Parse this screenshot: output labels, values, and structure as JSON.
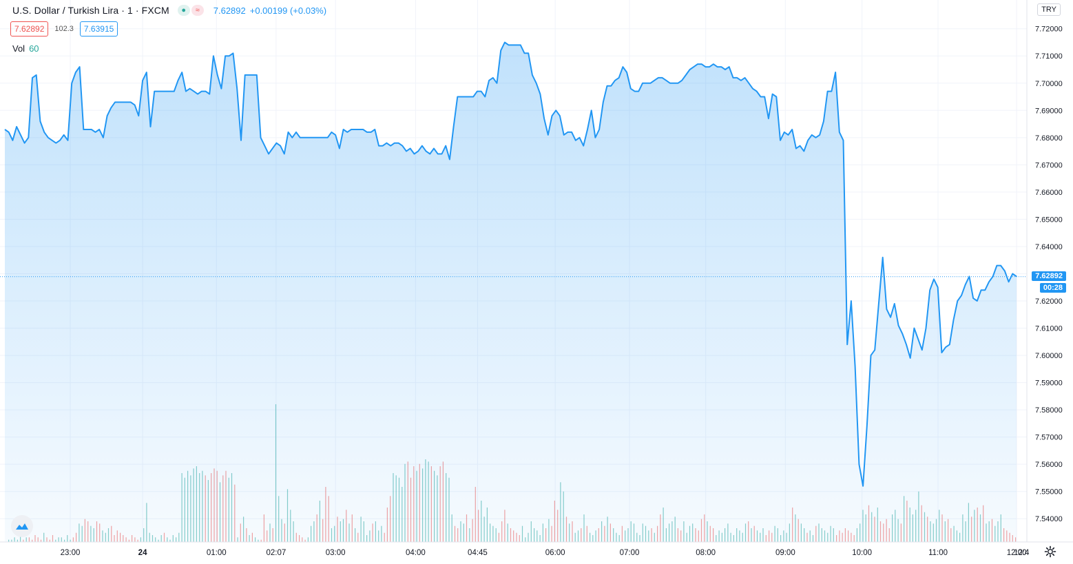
{
  "header": {
    "symbol": "U.S. Dollar / Turkish Lira · 1 · FXCM",
    "last": "7.62892",
    "change": "+0.00199 (+0.03%)",
    "bid": "7.62892",
    "spread": "102.3",
    "ask": "7.63915",
    "vol_label": "Vol",
    "vol_value": "60",
    "currency": "TRY",
    "dot_icon": "●",
    "wave_icon": "≈"
  },
  "price_label": {
    "value": "7.62892",
    "countdown": "00:28"
  },
  "colors": {
    "line": "#2196f3",
    "fill": "#cfe6fb",
    "up": "#26a69a",
    "down": "#ef5350",
    "grid": "#f0f3fa",
    "axis_text": "#131722"
  },
  "chart_data": {
    "type": "area",
    "title": "U.S. Dollar / Turkish Lira · 1 · FXCM",
    "xlabel": "",
    "ylabel": "",
    "ylim": [
      7.535,
      7.726
    ],
    "y_ticks": [
      "7.72000",
      "7.71000",
      "7.70000",
      "7.69000",
      "7.68000",
      "7.67000",
      "7.66000",
      "7.65000",
      "7.64000",
      "7.63000",
      "7.62000",
      "7.61000",
      "7.60000",
      "7.59000",
      "7.58000",
      "7.57000",
      "7.56000",
      "7.55000",
      "7.54000"
    ],
    "x_ticks": [
      "23:00",
      "24",
      "01:00",
      "02:07",
      "03:00",
      "04:00",
      "04:45",
      "06:00",
      "07:00",
      "08:00",
      "09:00",
      "10:00",
      "11:00",
      "12:00",
      "12:4"
    ],
    "x_tick_pos": [
      0.0,
      0.0756,
      0.1527,
      0.215,
      0.2771,
      0.3607,
      0.4255,
      0.5066,
      0.5842,
      0.6638,
      0.747,
      0.8271,
      0.9065,
      0.9886,
      1.0
    ],
    "grid": true,
    "series": [
      {
        "values": [
          7.683,
          7.682,
          7.679,
          7.684,
          7.681,
          7.678,
          7.68,
          7.702,
          7.703,
          7.686,
          7.682,
          7.68,
          7.679,
          7.678,
          7.679,
          7.681,
          7.679,
          7.7,
          7.704,
          7.706,
          7.683,
          7.683,
          7.683,
          7.682,
          7.683,
          7.68,
          7.688,
          7.691,
          7.693,
          7.693,
          7.693,
          7.693,
          7.693,
          7.692,
          7.688,
          7.701,
          7.704,
          7.684,
          7.697,
          7.697,
          7.697,
          7.697,
          7.697,
          7.697,
          7.701,
          7.704,
          7.697,
          7.698,
          7.697,
          7.696,
          7.697,
          7.697,
          7.696,
          7.71,
          7.703,
          7.698,
          7.71,
          7.71,
          7.711,
          7.698,
          7.679,
          7.703,
          7.703,
          7.703,
          7.703,
          7.68,
          7.677,
          7.674,
          7.676,
          7.678,
          7.677,
          7.674,
          7.682,
          7.68,
          7.682,
          7.68,
          7.68,
          7.68,
          7.68,
          7.68,
          7.68,
          7.68,
          7.68,
          7.682,
          7.681,
          7.676,
          7.683,
          7.682,
          7.683,
          7.683,
          7.683,
          7.683,
          7.682,
          7.682,
          7.683,
          7.677,
          7.677,
          7.678,
          7.677,
          7.678,
          7.678,
          7.677,
          7.675,
          7.676,
          7.674,
          7.675,
          7.677,
          7.675,
          7.674,
          7.676,
          7.674,
          7.674,
          7.677,
          7.672,
          7.684,
          7.695,
          7.695,
          7.695,
          7.695,
          7.695,
          7.697,
          7.697,
          7.695,
          7.701,
          7.702,
          7.7,
          7.712,
          7.715,
          7.714,
          7.714,
          7.714,
          7.714,
          7.711,
          7.711,
          7.703,
          7.7,
          7.696,
          7.687,
          7.681,
          7.688,
          7.69,
          7.688,
          7.681,
          7.682,
          7.682,
          7.679,
          7.68,
          7.677,
          7.683,
          7.69,
          7.68,
          7.683,
          7.693,
          7.699,
          7.699,
          7.701,
          7.702,
          7.706,
          7.704,
          7.698,
          7.697,
          7.697,
          7.7,
          7.7,
          7.7,
          7.701,
          7.702,
          7.702,
          7.701,
          7.7,
          7.7,
          7.7,
          7.701,
          7.703,
          7.705,
          7.706,
          7.707,
          7.707,
          7.706,
          7.706,
          7.707,
          7.706,
          7.706,
          7.705,
          7.706,
          7.702,
          7.702,
          7.701,
          7.702,
          7.7,
          7.698,
          7.697,
          7.695,
          7.695,
          7.687,
          7.696,
          7.695,
          7.679,
          7.682,
          7.681,
          7.683,
          7.676,
          7.677,
          7.675,
          7.679,
          7.681,
          7.68,
          7.681,
          7.686,
          7.697,
          7.697,
          7.704,
          7.682,
          7.679,
          7.604,
          7.62,
          7.596,
          7.56,
          7.552,
          7.574,
          7.6,
          7.602,
          7.619,
          7.636,
          7.617,
          7.614,
          7.619,
          7.611,
          7.608,
          7.604,
          7.599,
          7.61,
          7.606,
          7.602,
          7.61,
          7.624,
          7.628,
          7.625,
          7.601,
          7.603,
          7.604,
          7.613,
          7.62,
          7.622,
          7.626,
          7.629,
          7.621,
          7.62,
          7.624,
          7.624,
          7.627,
          7.629,
          7.633,
          7.633,
          7.631,
          7.627,
          7.63,
          7.629
        ],
        "fill_baseline": "bottom"
      }
    ],
    "volume": {
      "values": [
        1,
        1,
        2,
        1,
        3,
        1,
        2,
        2,
        1,
        3,
        2,
        1,
        4,
        2,
        1,
        3,
        1,
        2,
        2,
        1,
        3,
        1,
        2,
        4,
        8,
        7,
        10,
        9,
        7,
        6,
        9,
        8,
        5,
        4,
        6,
        7,
        3,
        5,
        4,
        3,
        2,
        1,
        3,
        2,
        1,
        2,
        6,
        17,
        4,
        3,
        2,
        1,
        3,
        4,
        2,
        1,
        3,
        2,
        4,
        30,
        28,
        31,
        29,
        32,
        33,
        30,
        31,
        29,
        27,
        30,
        32,
        31,
        26,
        29,
        31,
        28,
        30,
        25,
        2,
        8,
        11,
        6,
        3,
        4,
        2,
        1,
        1,
        12,
        5,
        8,
        6,
        60,
        20,
        10,
        8,
        23,
        14,
        9,
        4,
        3,
        2,
        1,
        2,
        7,
        9,
        12,
        18,
        10,
        24,
        20,
        6,
        7,
        11,
        9,
        10,
        14,
        8,
        12,
        6,
        4,
        11,
        9,
        3,
        5,
        8,
        9,
        5,
        7,
        4,
        15,
        20,
        30,
        29,
        28,
        24,
        34,
        35,
        28,
        33,
        31,
        34,
        32,
        36,
        35,
        33,
        31,
        29,
        33,
        35,
        30,
        28,
        12,
        7,
        6,
        9,
        8,
        12,
        6,
        10,
        24,
        14,
        18,
        11,
        15,
        8,
        7,
        6,
        4,
        9,
        14,
        8,
        6,
        5,
        4,
        3,
        7,
        2,
        4,
        9,
        6,
        5,
        3,
        8,
        6,
        10,
        7,
        18,
        14,
        26,
        22,
        11,
        8,
        9,
        4,
        5,
        6,
        12,
        7,
        4,
        3,
        5,
        6,
        9,
        7,
        11,
        8,
        6,
        4,
        3,
        7,
        5,
        6,
        9,
        8,
        4,
        3,
        8,
        7,
        5,
        6,
        4,
        7,
        12,
        15,
        6,
        8,
        9,
        11,
        6,
        5,
        9,
        4,
        7,
        8,
        6,
        5,
        10,
        12,
        9,
        7,
        6,
        3,
        5,
        4,
        6,
        8,
        4,
        3,
        6,
        5,
        4,
        8,
        9,
        6,
        7,
        5,
        4,
        6,
        3,
        5,
        4,
        7,
        6,
        3,
        5,
        4,
        8,
        15,
        12,
        10,
        8,
        6,
        4,
        5,
        3,
        7,
        8,
        6,
        5,
        4,
        7,
        6,
        3,
        5,
        4,
        6,
        5,
        4,
        3,
        6,
        8,
        14,
        12,
        16,
        13,
        11,
        15,
        9,
        8,
        10,
        6,
        12,
        14,
        10,
        8,
        20,
        18,
        15,
        12,
        14,
        22,
        16,
        13,
        11,
        9,
        8,
        10,
        14,
        12,
        9,
        10,
        6,
        7,
        5,
        4,
        12,
        9,
        17,
        11,
        14,
        15,
        12,
        16,
        8,
        9,
        10,
        7,
        9,
        12,
        6,
        5,
        4,
        3,
        2
      ]
    }
  }
}
